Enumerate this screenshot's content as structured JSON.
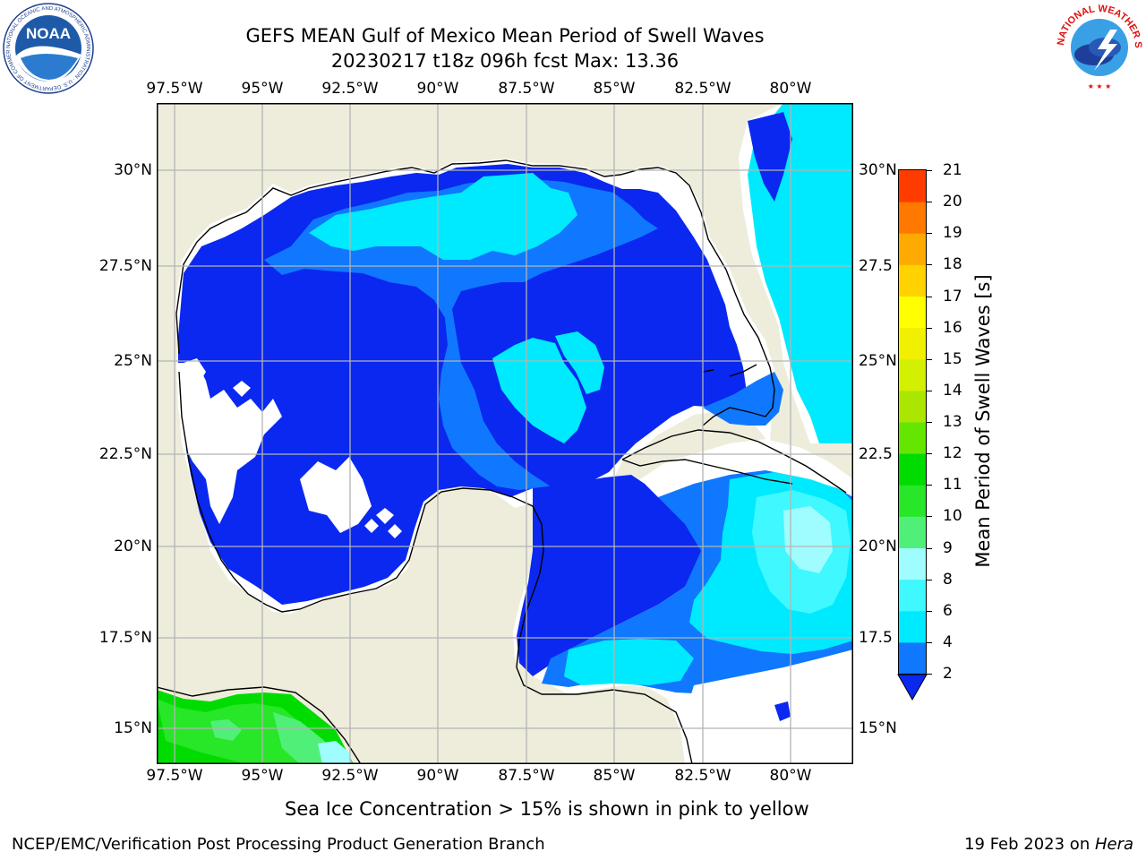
{
  "header": {
    "title_line1": "GEFS MEAN Gulf of Mexico Mean Period of Swell Waves",
    "title_line2": "20230217 t18z 096h fcst   Max: 13.36"
  },
  "logos": {
    "left": {
      "text": "NOAA",
      "ring_text": "NATIONAL OCEANIC AND ATMOSPHERIC ADMINISTRATION · U.S. DEPARTMENT OF COMMERCE"
    },
    "right": {
      "ring_text": "NATIONAL WEATHER SERVICE"
    }
  },
  "map": {
    "lon_labels": [
      "97.5°W",
      "95°W",
      "92.5°W",
      "90°W",
      "87.5°W",
      "85°W",
      "82.5°W",
      "80°W"
    ],
    "lat_labels_left": [
      "30°N",
      "27.5°N",
      "25°N",
      "22.5°N",
      "20°N",
      "17.5°N",
      "15°N"
    ],
    "lat_labels_right": [
      "30°N",
      "27.5",
      "25°N",
      "22.5",
      "20°N",
      "17.5",
      "15°N"
    ],
    "colors": {
      "land": "#eeeddc",
      "ocean_2": "#0a28f0",
      "ocean_4": "#0f78ff",
      "ocean_6": "#00eaff",
      "ocean_8": "#40f8ff",
      "ocean_9": "#a0fdff",
      "green_9": "#50f078",
      "green_10": "#28e628",
      "green_11": "#00dc00",
      "grid": "#b4b4b4"
    }
  },
  "colorbar": {
    "ticks": [
      "2",
      "4",
      "6",
      "8",
      "9",
      "10",
      "11",
      "12",
      "13",
      "14",
      "15",
      "16",
      "17",
      "18",
      "19",
      "20",
      "21"
    ],
    "colors": [
      "#0f78ff",
      "#00eaff",
      "#40f8ff",
      "#a0fdff",
      "#50f078",
      "#28e628",
      "#00dc00",
      "#64e600",
      "#aae600",
      "#d2f000",
      "#f0f000",
      "#ffff00",
      "#ffd200",
      "#ffaa00",
      "#ff7800",
      "#ff3c00",
      "#ff0000"
    ],
    "under_color": "#0a28f0",
    "label": "Mean Period of Swell Waves [s]"
  },
  "subtitle": "Sea Ice Concentration > 15% is shown in pink to yellow",
  "footer": {
    "left": "NCEP/EMC/Verification Post Processing Product Generation Branch",
    "date": "19 Feb 2023 on ",
    "machine": "Hera"
  }
}
